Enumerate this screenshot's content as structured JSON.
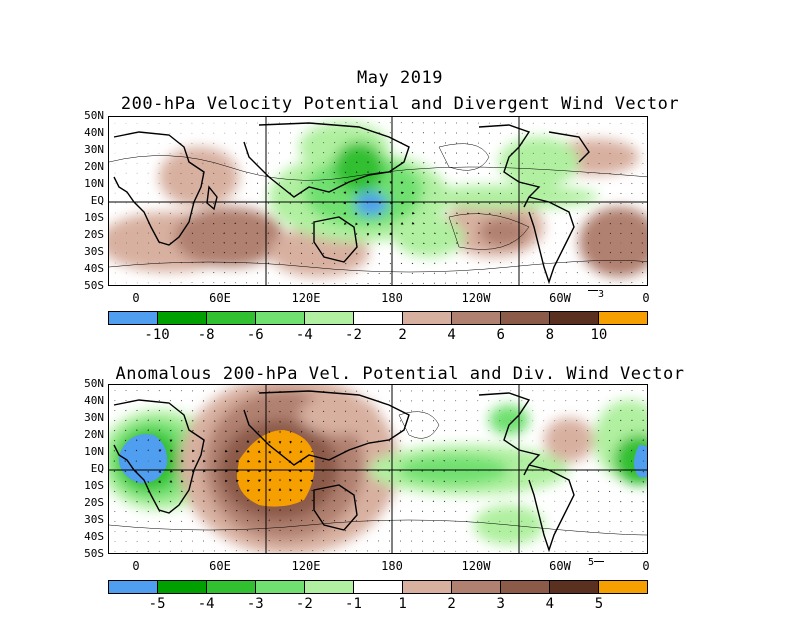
{
  "header": {
    "date": "May 2019",
    "title1": "200-hPa Velocity Potential and Divergent Wind Vector",
    "title2": "Anomalous 200-hPa Vel. Potential and Div. Wind Vector"
  },
  "lat_labels": [
    "50N",
    "40N",
    "30N",
    "20N",
    "10N",
    "EQ",
    "10S",
    "20S",
    "30S",
    "40S",
    "50S"
  ],
  "lon_labels": [
    "0",
    "60E",
    "120E",
    "180",
    "120W",
    "60W",
    "0"
  ],
  "panel1": {
    "ref_vector": "3",
    "colorbar_labels": [
      "-10",
      "-8",
      "-6",
      "-4",
      "-2",
      "2",
      "4",
      "6",
      "8",
      "10"
    ],
    "colors": [
      "#4f9ef0",
      "#00a000",
      "#30c030",
      "#70e070",
      "#b0f0a0",
      "#ffffff",
      "#d8b0a0",
      "#b08070",
      "#8c5a48",
      "#5a3020",
      "#f5a000"
    ]
  },
  "panel2": {
    "ref_vector": "5",
    "colorbar_labels": [
      "-5",
      "-4",
      "-3",
      "-2",
      "-1",
      "1",
      "2",
      "3",
      "4",
      "5"
    ],
    "colors": [
      "#4f9ef0",
      "#00a000",
      "#30c030",
      "#70e070",
      "#b0f0a0",
      "#ffffff",
      "#d8b0a0",
      "#b08070",
      "#8c5a48",
      "#5a3020",
      "#f5a000"
    ]
  }
}
